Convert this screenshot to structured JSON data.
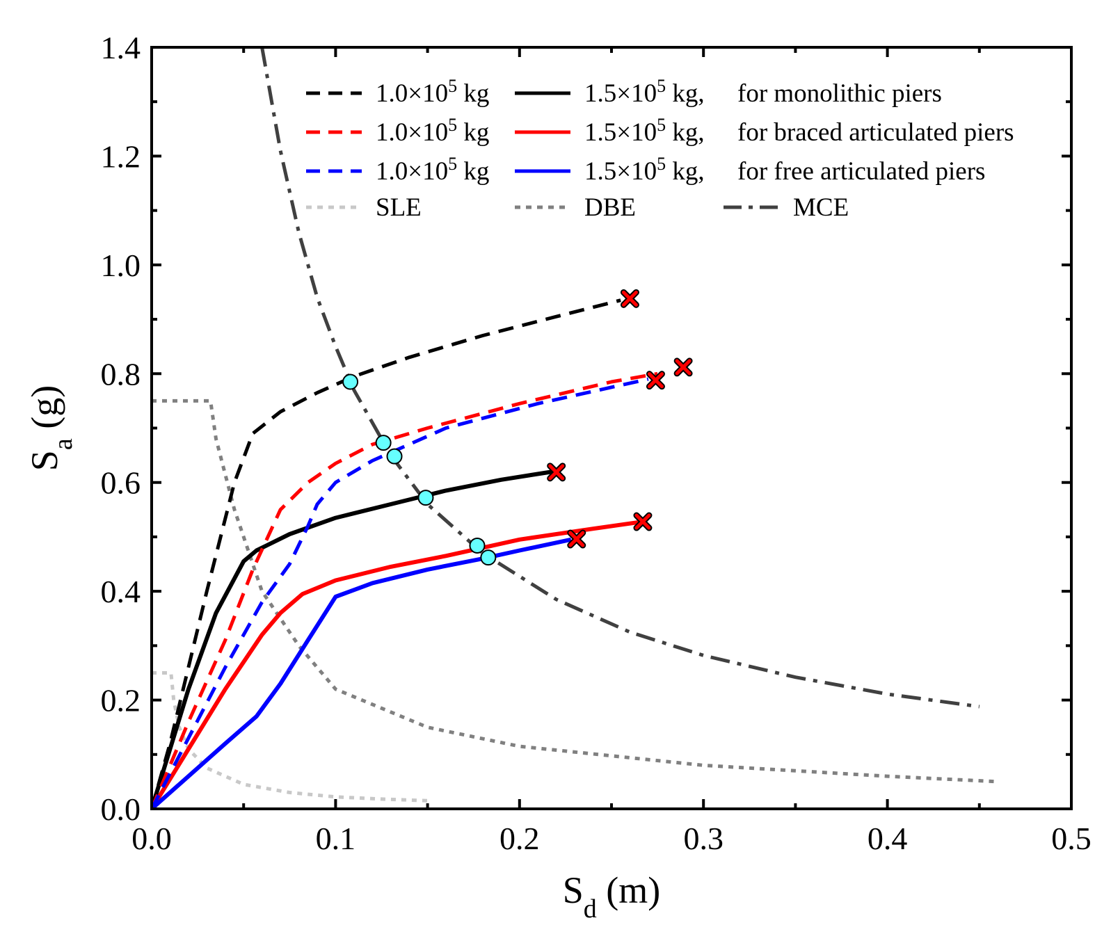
{
  "chart_data": {
    "type": "line",
    "xlabel": {
      "main": "S",
      "sub": "d",
      "unit": " (m)"
    },
    "ylabel": {
      "main": "S",
      "sub": "a",
      "unit": " (g)"
    },
    "xlim": [
      0,
      0.5
    ],
    "ylim": [
      0,
      1.4
    ],
    "xticks": [
      0.0,
      0.1,
      0.2,
      0.3,
      0.4,
      0.5
    ],
    "yticks": [
      0.0,
      0.2,
      0.4,
      0.6,
      0.8,
      1.0,
      1.2,
      1.4
    ],
    "xtick_labels": [
      "0.0",
      "0.1",
      "0.2",
      "0.3",
      "0.4",
      "0.5"
    ],
    "ytick_labels": [
      "0.0",
      "0.2",
      "0.4",
      "0.6",
      "0.8",
      "1.0",
      "1.2",
      "1.4"
    ],
    "legend": {
      "rows": [
        {
          "left": "1.0×10",
          "left_exp": "5",
          "left_unit": " kg",
          "right": "1.5×10",
          "right_exp": "5",
          "right_unit": " kg,",
          "desc": "for monolithic piers",
          "color": "#000000"
        },
        {
          "left": "1.0×10",
          "left_exp": "5",
          "left_unit": " kg",
          "right": "1.5×10",
          "right_exp": "5",
          "right_unit": " kg,",
          "desc": "for braced articulated piers",
          "color": "#ff0000"
        },
        {
          "left": "1.0×10",
          "left_exp": "5",
          "left_unit": " kg",
          "right": "1.5×10",
          "right_exp": "5",
          "right_unit": " kg,",
          "desc": "for free articulated piers",
          "color": "#0000ff"
        }
      ],
      "spectra": [
        {
          "label": "SLE",
          "color": "#c8c8c8",
          "style": "dot"
        },
        {
          "label": "DBE",
          "color": "#808080",
          "style": "dot"
        },
        {
          "label": "MCE",
          "color": "#404040",
          "style": "dashdot"
        }
      ]
    },
    "series": [
      {
        "name": "1.0×10^5 kg, monolithic piers",
        "color": "#000000",
        "style": "dash",
        "x": [
          0,
          0.01,
          0.03,
          0.045,
          0.055,
          0.07,
          0.09,
          0.11,
          0.14,
          0.18,
          0.22,
          0.255
        ],
        "y": [
          0,
          0.12,
          0.4,
          0.6,
          0.69,
          0.73,
          0.765,
          0.795,
          0.83,
          0.87,
          0.905,
          0.935
        ]
      },
      {
        "name": "1.5×10^5 kg, monolithic piers",
        "color": "#000000",
        "style": "solid",
        "x": [
          0,
          0.02,
          0.035,
          0.05,
          0.057,
          0.075,
          0.1,
          0.13,
          0.16,
          0.19,
          0.218
        ],
        "y": [
          0,
          0.22,
          0.36,
          0.455,
          0.475,
          0.505,
          0.535,
          0.56,
          0.585,
          0.605,
          0.62
        ]
      },
      {
        "name": "1.0×10^5 kg, braced articulated piers",
        "color": "#ff0000",
        "style": "dash",
        "x": [
          0,
          0.02,
          0.04,
          0.055,
          0.07,
          0.085,
          0.1,
          0.12,
          0.15,
          0.2,
          0.25,
          0.275
        ],
        "y": [
          0,
          0.16,
          0.31,
          0.44,
          0.55,
          0.6,
          0.635,
          0.67,
          0.7,
          0.745,
          0.785,
          0.8
        ]
      },
      {
        "name": "1.5×10^5 kg, braced articulated piers",
        "color": "#ff0000",
        "style": "solid",
        "x": [
          0,
          0.02,
          0.04,
          0.06,
          0.07,
          0.082,
          0.1,
          0.13,
          0.16,
          0.2,
          0.24,
          0.265
        ],
        "y": [
          0,
          0.11,
          0.22,
          0.32,
          0.36,
          0.395,
          0.42,
          0.445,
          0.465,
          0.495,
          0.515,
          0.527
        ]
      },
      {
        "name": "1.0×10^5 kg, free articulated piers",
        "color": "#0000ff",
        "style": "dash",
        "x": [
          0,
          0.02,
          0.04,
          0.06,
          0.075,
          0.085,
          0.09,
          0.1,
          0.12,
          0.16,
          0.21,
          0.27
        ],
        "y": [
          0,
          0.13,
          0.26,
          0.38,
          0.45,
          0.52,
          0.56,
          0.6,
          0.64,
          0.7,
          0.745,
          0.79
        ]
      },
      {
        "name": "1.5×10^5 kg, free articulated piers",
        "color": "#0000ff",
        "style": "solid",
        "x": [
          0,
          0.02,
          0.04,
          0.057,
          0.07,
          0.085,
          0.1,
          0.12,
          0.15,
          0.18,
          0.2,
          0.228
        ],
        "y": [
          0,
          0.06,
          0.12,
          0.17,
          0.23,
          0.31,
          0.39,
          0.415,
          0.44,
          0.46,
          0.475,
          0.495
        ]
      }
    ],
    "spectra_curves": [
      {
        "name": "SLE",
        "color": "#c8c8c8",
        "style": "dot",
        "x": [
          0,
          0.0105,
          0.012,
          0.015,
          0.02,
          0.03,
          0.05,
          0.075,
          0.1,
          0.125,
          0.15
        ],
        "y": [
          0.25,
          0.25,
          0.2,
          0.15,
          0.11,
          0.075,
          0.045,
          0.03,
          0.022,
          0.018,
          0.015
        ]
      },
      {
        "name": "DBE",
        "color": "#808080",
        "style": "dot",
        "x": [
          0,
          0.032,
          0.035,
          0.045,
          0.06,
          0.08,
          0.1,
          0.15,
          0.2,
          0.3,
          0.4,
          0.46
        ],
        "y": [
          0.75,
          0.75,
          0.68,
          0.55,
          0.4,
          0.3,
          0.22,
          0.15,
          0.115,
          0.08,
          0.06,
          0.05
        ]
      },
      {
        "name": "MCE",
        "color": "#404040",
        "style": "dashdot",
        "x": [
          0.06,
          0.07,
          0.08,
          0.09,
          0.1,
          0.11,
          0.13,
          0.15,
          0.18,
          0.22,
          0.26,
          0.3,
          0.35,
          0.4,
          0.45
        ],
        "y": [
          1.4,
          1.21,
          1.06,
          0.94,
          0.85,
          0.77,
          0.65,
          0.56,
          0.47,
          0.385,
          0.325,
          0.282,
          0.242,
          0.211,
          0.188
        ]
      }
    ],
    "performance_points": [
      {
        "x": 0.108,
        "y": 0.785
      },
      {
        "x": 0.126,
        "y": 0.673
      },
      {
        "x": 0.132,
        "y": 0.648
      },
      {
        "x": 0.149,
        "y": 0.572
      },
      {
        "x": 0.177,
        "y": 0.484
      },
      {
        "x": 0.183,
        "y": 0.462
      }
    ],
    "failure_points": [
      {
        "x": 0.26,
        "y": 0.938
      },
      {
        "x": 0.289,
        "y": 0.812
      },
      {
        "x": 0.274,
        "y": 0.788
      },
      {
        "x": 0.22,
        "y": 0.619
      },
      {
        "x": 0.267,
        "y": 0.528
      },
      {
        "x": 0.231,
        "y": 0.496
      }
    ],
    "colors": {
      "performance_fill": "#66ffff",
      "failure_fill": "#ff0000",
      "axis": "#000000"
    }
  }
}
